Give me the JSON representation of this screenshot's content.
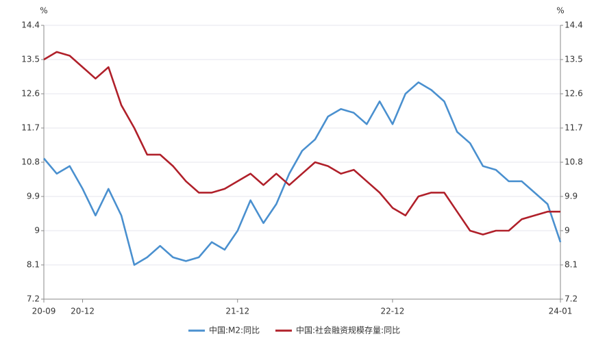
{
  "chart_data": {
    "type": "line",
    "y_label": "%",
    "y2_label": "%",
    "categories": [
      "20-09",
      null,
      null,
      "20-12",
      null,
      null,
      null,
      null,
      null,
      null,
      null,
      null,
      null,
      null,
      null,
      "21-12",
      null,
      null,
      null,
      null,
      null,
      null,
      null,
      null,
      null,
      null,
      null,
      "22-12",
      null,
      null,
      null,
      null,
      null,
      null,
      null,
      null,
      null,
      null,
      null,
      null,
      "24-01"
    ],
    "series": [
      {
        "name": "中国:M2:同比",
        "color": "#4a90cf",
        "values": [
          10.9,
          10.5,
          10.7,
          10.1,
          9.4,
          10.1,
          9.4,
          8.1,
          8.3,
          8.6,
          8.3,
          8.2,
          8.3,
          8.7,
          8.5,
          9.0,
          9.8,
          9.2,
          9.7,
          10.5,
          11.1,
          11.4,
          12.0,
          12.2,
          12.1,
          11.8,
          12.4,
          11.8,
          12.6,
          12.9,
          12.7,
          12.4,
          11.6,
          11.3,
          10.7,
          10.6,
          10.3,
          10.3,
          10.0,
          9.7,
          8.7
        ]
      },
      {
        "name": "中国:社会融资规模存量:同比",
        "color": "#b0202a",
        "values": [
          13.5,
          13.7,
          13.6,
          13.3,
          13.0,
          13.3,
          12.3,
          11.7,
          11.0,
          11.0,
          10.7,
          10.3,
          10.0,
          10.0,
          10.1,
          10.3,
          10.5,
          10.2,
          10.5,
          10.2,
          10.5,
          10.8,
          10.7,
          10.5,
          10.6,
          10.3,
          10.0,
          9.6,
          9.4,
          9.9,
          10.0,
          10.0,
          9.5,
          9.0,
          8.9,
          9.0,
          9.0,
          9.3,
          9.4,
          9.5,
          9.5
        ]
      }
    ],
    "ylim": [
      7.2,
      14.4
    ],
    "yticks": [
      7.2,
      8.1,
      9,
      9.9,
      10.8,
      11.7,
      12.6,
      13.5,
      14.4
    ],
    "y2lim": [
      7.2,
      14.4
    ],
    "y2ticks": [
      7.2,
      8.1,
      9,
      9.9,
      10.8,
      11.7,
      12.6,
      13.5,
      14.4
    ],
    "grid": true,
    "legend": "bottom"
  }
}
